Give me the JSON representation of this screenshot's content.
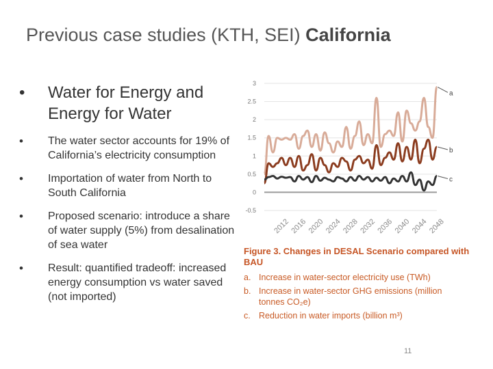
{
  "slide": {
    "title_plain": "Previous case studies (KTH, SEI) ",
    "title_bold": "California",
    "page_number": "11"
  },
  "bullets": {
    "main": "Water for Energy and Energy for Water",
    "sub": [
      "The water sector accounts for 19% of California’s electricity consumption",
      "Importation of water from North to South California",
      "Proposed scenario: introduce a share of water supply (5%) from desalination of sea water",
      "Result: quantified tradeoff: increased energy consumption vs water saved (not imported)"
    ]
  },
  "figure": {
    "caption_title": "Figure 3. Changes in DESAL Scenario compared with BAU",
    "items": [
      {
        "key": "a.",
        "text": "Increase in water-sector electricity use (TWh)"
      },
      {
        "key": "b.",
        "text": "Increase in water-sector GHG emissions (million tonnes CO₂e)"
      },
      {
        "key": "c.",
        "text": "Reduction in water imports (billion m³)"
      }
    ]
  },
  "chart_data": {
    "type": "line",
    "ylim": [
      -0.5,
      3
    ],
    "yticks": [
      "3",
      "2.5",
      "2",
      "1.5",
      "1",
      "0.5",
      "0",
      "-0.5"
    ],
    "xticks": [
      "2012",
      "2016",
      "2020",
      "2024",
      "2028",
      "2032",
      "2036",
      "2040",
      "2044",
      "2048"
    ],
    "x": [
      2010,
      2011,
      2012,
      2013,
      2014,
      2015,
      2016,
      2017,
      2018,
      2019,
      2020,
      2021,
      2022,
      2023,
      2024,
      2025,
      2026,
      2027,
      2028,
      2029,
      2030,
      2031,
      2032,
      2033,
      2034,
      2035,
      2036,
      2037,
      2038,
      2039,
      2040,
      2041,
      2042,
      2043,
      2044,
      2045,
      2046,
      2047,
      2048,
      2049,
      2050
    ],
    "series": [
      {
        "name": "a",
        "color": "#d8ab98",
        "values": [
          0.5,
          1.55,
          1.1,
          1.5,
          1.45,
          1.5,
          1.45,
          1.6,
          1.2,
          1.55,
          1.7,
          1.25,
          1.6,
          1.15,
          1.65,
          1.35,
          1.1,
          1.4,
          1.25,
          1.8,
          1.2,
          1.55,
          1.95,
          1.3,
          1.6,
          1.35,
          2.6,
          1.25,
          1.6,
          1.7,
          1.55,
          2.2,
          1.4,
          2.25,
          1.9,
          1.7,
          1.95,
          2.6,
          1.8,
          1.5,
          2.9
        ]
      },
      {
        "name": "b",
        "color": "#8b3c1f",
        "values": [
          0.25,
          0.8,
          0.7,
          0.8,
          0.95,
          0.75,
          0.95,
          0.7,
          1.0,
          0.6,
          0.75,
          1.05,
          0.6,
          0.95,
          0.75,
          0.55,
          0.8,
          0.7,
          0.95,
          0.85,
          0.6,
          0.9,
          1.0,
          0.8,
          0.9,
          0.65,
          1.3,
          0.75,
          0.95,
          1.1,
          0.9,
          1.35,
          0.85,
          1.25,
          0.9,
          1.45,
          0.8,
          1.2,
          1.45,
          0.9,
          1.25
        ]
      },
      {
        "name": "c",
        "color": "#333333",
        "values": [
          0.35,
          0.42,
          0.45,
          0.38,
          0.43,
          0.4,
          0.42,
          0.3,
          0.45,
          0.35,
          0.42,
          0.28,
          0.45,
          0.32,
          0.4,
          0.35,
          0.3,
          0.42,
          0.38,
          0.3,
          0.42,
          0.32,
          0.45,
          0.35,
          0.42,
          0.3,
          0.4,
          0.32,
          0.42,
          0.25,
          0.38,
          0.3,
          0.45,
          0.3,
          0.55,
          0.2,
          0.35,
          0.05,
          0.3,
          0.2,
          0.45
        ]
      }
    ]
  }
}
